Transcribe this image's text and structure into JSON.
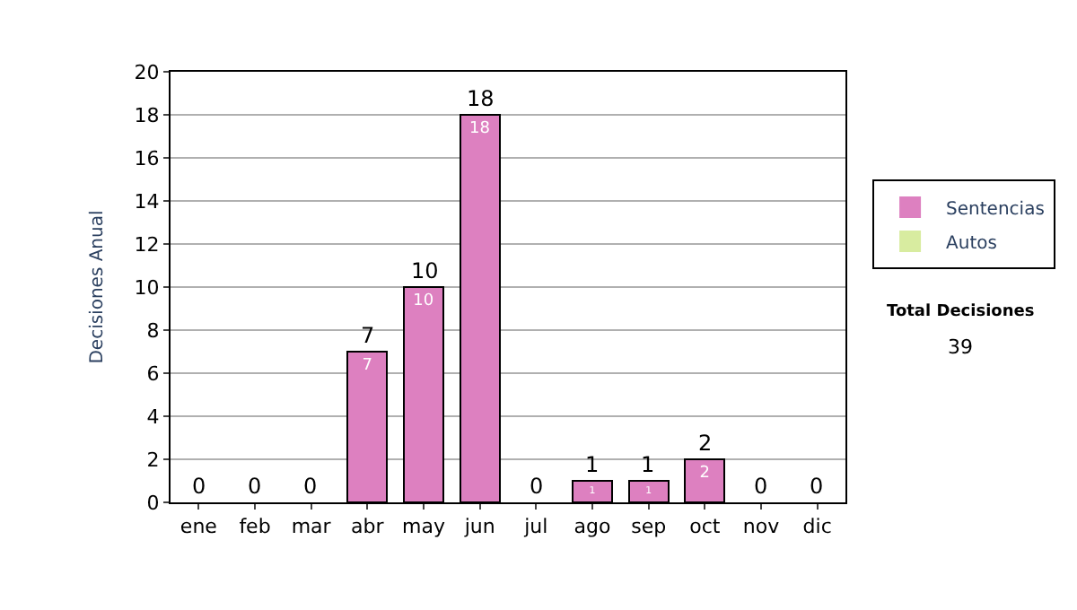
{
  "chart_data": {
    "type": "bar",
    "stacked": true,
    "ylabel": "Decisiones Anual",
    "categories": [
      "ene",
      "feb",
      "mar",
      "abr",
      "may",
      "jun",
      "jul",
      "ago",
      "sep",
      "oct",
      "nov",
      "dic"
    ],
    "series": [
      {
        "name": "Sentencias",
        "color": "#dd80c0",
        "values": [
          0,
          0,
          0,
          7,
          10,
          18,
          0,
          1,
          1,
          2,
          0,
          0
        ],
        "value_labels": [
          null,
          null,
          null,
          "7",
          "10",
          "18",
          null,
          "1",
          "1",
          "2",
          null,
          null
        ]
      },
      {
        "name": "Autos",
        "color": "#d8eca0",
        "values": [
          0,
          0,
          0,
          0,
          0,
          0,
          0,
          0,
          0,
          0,
          0,
          0
        ]
      }
    ],
    "totals": [
      "0",
      "0",
      "0",
      "7",
      "10",
      "18",
      "0",
      "1",
      "1",
      "2",
      "0",
      "0"
    ],
    "ylim": [
      0,
      20
    ],
    "yticks": [
      0,
      2,
      4,
      6,
      8,
      10,
      12,
      14,
      16,
      18,
      20
    ],
    "grid": "y",
    "legend": "right",
    "annotations": [
      "Total Decisiones",
      "39"
    ]
  }
}
